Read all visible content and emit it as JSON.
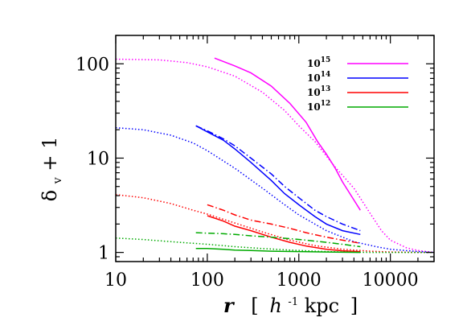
{
  "chart_data": {
    "type": "line",
    "title": "",
    "xlabel": {
      "var": "r",
      "bracket_open": "[",
      "unit_h": "h",
      "unit_exp": "-1",
      "unit_rest": " kpc",
      "bracket_close": "]"
    },
    "ylabel": {
      "delta": "δ",
      "sub": "v",
      "rest": " + 1"
    },
    "xscale": "log",
    "yscale": "log",
    "xlim": [
      10,
      30000
    ],
    "ylim": [
      0.8,
      200
    ],
    "xticks": [
      {
        "value": 10,
        "label": "10"
      },
      {
        "value": 100,
        "label": "100"
      },
      {
        "value": 1000,
        "label": "1000"
      },
      {
        "value": 10000,
        "label": "10000"
      }
    ],
    "yticks": [
      {
        "value": 1,
        "label": "1"
      },
      {
        "value": 10,
        "label": "10"
      },
      {
        "value": 100,
        "label": "100"
      }
    ],
    "grid": false,
    "legend_position": "top-right",
    "legend": [
      {
        "base": "10",
        "exp": "15",
        "color": "#ff00ff"
      },
      {
        "base": "10",
        "exp": "14",
        "color": "#0000ff"
      },
      {
        "base": "10",
        "exp": "13",
        "color": "#ff0000"
      },
      {
        "base": "10",
        "exp": "12",
        "color": "#00aa00"
      }
    ],
    "series": [
      {
        "mass_exp": "15",
        "style": "solid",
        "color": "#ff00ff",
        "x": [
          120,
          200,
          300,
          500,
          800,
          1200,
          1600,
          2000,
          2500,
          3000,
          4000,
          4700
        ],
        "y": [
          115,
          95,
          80,
          58,
          38,
          24,
          15,
          11,
          7.8,
          5.6,
          3.6,
          2.8
        ]
      },
      {
        "mass_exp": "15",
        "style": "dotted",
        "color": "#ff00ff",
        "x": [
          10,
          30,
          60,
          100,
          200,
          400,
          700,
          1000,
          1500,
          2500,
          4000,
          6000,
          8000,
          10000,
          15000,
          20000,
          30000
        ],
        "y": [
          112,
          110,
          103,
          93,
          74,
          50,
          32,
          22,
          15,
          8,
          4.8,
          2.6,
          1.7,
          1.35,
          1.12,
          1.05,
          1.0
        ]
      },
      {
        "mass_exp": "14",
        "style": "solid",
        "color": "#0000ff",
        "x": [
          75,
          100,
          150,
          200,
          300,
          500,
          700,
          1000,
          1500,
          2000,
          3000,
          4700
        ],
        "y": [
          22,
          19,
          15.5,
          12.5,
          9,
          5.8,
          4.2,
          3.2,
          2.4,
          2.0,
          1.7,
          1.55
        ]
      },
      {
        "mass_exp": "14",
        "style": "dashdot",
        "color": "#0000ff",
        "x": [
          75,
          100,
          150,
          200,
          300,
          500,
          700,
          1000,
          1500,
          2000,
          3000,
          4700
        ],
        "y": [
          22,
          19.5,
          16,
          13.5,
          10,
          6.8,
          5.0,
          3.8,
          2.8,
          2.4,
          2.0,
          1.7
        ]
      },
      {
        "mass_exp": "14",
        "style": "dotted",
        "color": "#0000ff",
        "x": [
          10,
          20,
          40,
          70,
          100,
          200,
          400,
          700,
          1000,
          2000,
          4000,
          7000,
          10000,
          20000,
          30000
        ],
        "y": [
          21,
          20,
          17.5,
          14.5,
          12,
          7.8,
          4.8,
          3.2,
          2.5,
          1.7,
          1.3,
          1.15,
          1.08,
          1.02,
          1.0
        ]
      },
      {
        "mass_exp": "13",
        "style": "solid",
        "color": "#ff0000",
        "x": [
          100,
          150,
          200,
          300,
          500,
          800,
          1200,
          2000,
          3000,
          4700
        ],
        "y": [
          2.45,
          2.15,
          1.9,
          1.7,
          1.45,
          1.28,
          1.17,
          1.08,
          1.04,
          1.02
        ]
      },
      {
        "mass_exp": "13",
        "style": "dashdot",
        "color": "#ff0000",
        "x": [
          100,
          150,
          200,
          300,
          500,
          800,
          1200,
          2000,
          3000,
          4700
        ],
        "y": [
          3.2,
          2.8,
          2.5,
          2.2,
          2.0,
          1.8,
          1.62,
          1.45,
          1.35,
          1.25
        ]
      },
      {
        "mass_exp": "13",
        "style": "dotted",
        "color": "#ff0000",
        "x": [
          10,
          20,
          40,
          70,
          100,
          200,
          400,
          800,
          1500,
          3000,
          6000,
          10000,
          20000,
          30000
        ],
        "y": [
          4.1,
          3.8,
          3.3,
          2.8,
          2.55,
          2.05,
          1.65,
          1.35,
          1.18,
          1.08,
          1.03,
          1.01,
          1.0,
          1.0
        ]
      },
      {
        "mass_exp": "12",
        "style": "solid",
        "color": "#00aa00",
        "x": [
          75,
          100,
          150,
          200,
          300,
          500,
          1000,
          2000,
          4700
        ],
        "y": [
          1.1,
          1.1,
          1.08,
          1.06,
          1.05,
          1.03,
          1.02,
          1.01,
          1.0
        ]
      },
      {
        "mass_exp": "12",
        "style": "dashdot",
        "color": "#00aa00",
        "x": [
          75,
          100,
          150,
          200,
          300,
          500,
          800,
          1200,
          2000,
          3000,
          4700
        ],
        "y": [
          1.62,
          1.6,
          1.58,
          1.55,
          1.5,
          1.45,
          1.4,
          1.35,
          1.28,
          1.22,
          1.15
        ]
      },
      {
        "mass_exp": "12",
        "style": "dotted",
        "color": "#00aa00",
        "x": [
          10,
          20,
          40,
          70,
          100,
          200,
          400,
          800,
          1500,
          3000,
          6000,
          10000,
          30000
        ],
        "y": [
          1.42,
          1.37,
          1.3,
          1.25,
          1.22,
          1.15,
          1.1,
          1.06,
          1.03,
          1.01,
          1.0,
          1.0,
          1.0
        ]
      }
    ]
  }
}
